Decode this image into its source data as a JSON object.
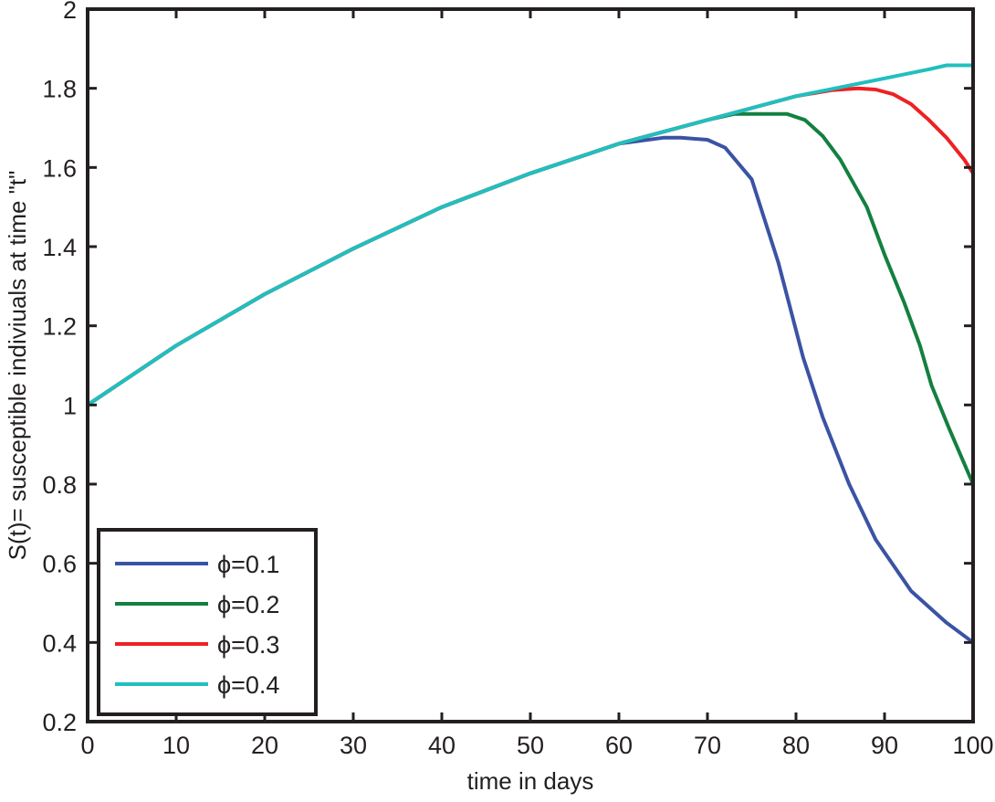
{
  "chart_data": {
    "type": "line",
    "title": "",
    "xlabel": "time in days",
    "ylabel": "S(t)= susceptible indiviuals at time \"t\"",
    "xlim": [
      0,
      100
    ],
    "ylim": [
      0.2,
      2
    ],
    "xticks": [
      "0",
      "10",
      "20",
      "30",
      "40",
      "50",
      "60",
      "70",
      "80",
      "90",
      "100"
    ],
    "yticks": [
      "0.2",
      "0.4",
      "0.6",
      "0.8",
      "1",
      "1.2",
      "1.4",
      "1.6",
      "1.8",
      "2"
    ],
    "grid": false,
    "legend_position": "bottom-left",
    "series": [
      {
        "name": "ϕ=0.1",
        "color": "#3a53a4",
        "x": [
          0,
          10,
          20,
          30,
          40,
          50,
          60,
          65,
          67,
          70,
          72,
          75,
          78,
          80.8,
          83,
          86,
          89,
          93,
          97,
          100
        ],
        "y": [
          1.0,
          1.15,
          1.28,
          1.395,
          1.5,
          1.585,
          1.66,
          1.675,
          1.675,
          1.67,
          1.65,
          1.57,
          1.36,
          1.12,
          0.97,
          0.8,
          0.66,
          0.53,
          0.45,
          0.4
        ]
      },
      {
        "name": "ϕ=0.2",
        "color": "#138040",
        "x": [
          0,
          10,
          20,
          30,
          40,
          50,
          60,
          70,
          73,
          76,
          79,
          81,
          83,
          85,
          88,
          90,
          92.2,
          94,
          95.3,
          97.3,
          100
        ],
        "y": [
          1.0,
          1.15,
          1.28,
          1.395,
          1.5,
          1.585,
          1.66,
          1.72,
          1.735,
          1.735,
          1.735,
          1.72,
          1.68,
          1.62,
          1.5,
          1.38,
          1.26,
          1.15,
          1.05,
          0.94,
          0.8
        ]
      },
      {
        "name": "ϕ=0.3",
        "color": "#ed2124",
        "x": [
          0,
          10,
          20,
          30,
          40,
          50,
          60,
          70,
          80,
          84,
          87,
          89,
          91,
          93,
          95,
          97,
          99,
          100
        ],
        "y": [
          1.0,
          1.15,
          1.28,
          1.395,
          1.5,
          1.585,
          1.66,
          1.72,
          1.78,
          1.795,
          1.8,
          1.797,
          1.785,
          1.76,
          1.72,
          1.675,
          1.62,
          1.585
        ]
      },
      {
        "name": "ϕ=0.4",
        "color": "#21bfbf",
        "x": [
          0,
          10,
          20,
          30,
          40,
          50,
          60,
          70,
          80,
          90,
          95,
          97,
          100
        ],
        "y": [
          1.0,
          1.15,
          1.28,
          1.395,
          1.5,
          1.585,
          1.66,
          1.72,
          1.78,
          1.825,
          1.848,
          1.858,
          1.858
        ]
      }
    ]
  }
}
